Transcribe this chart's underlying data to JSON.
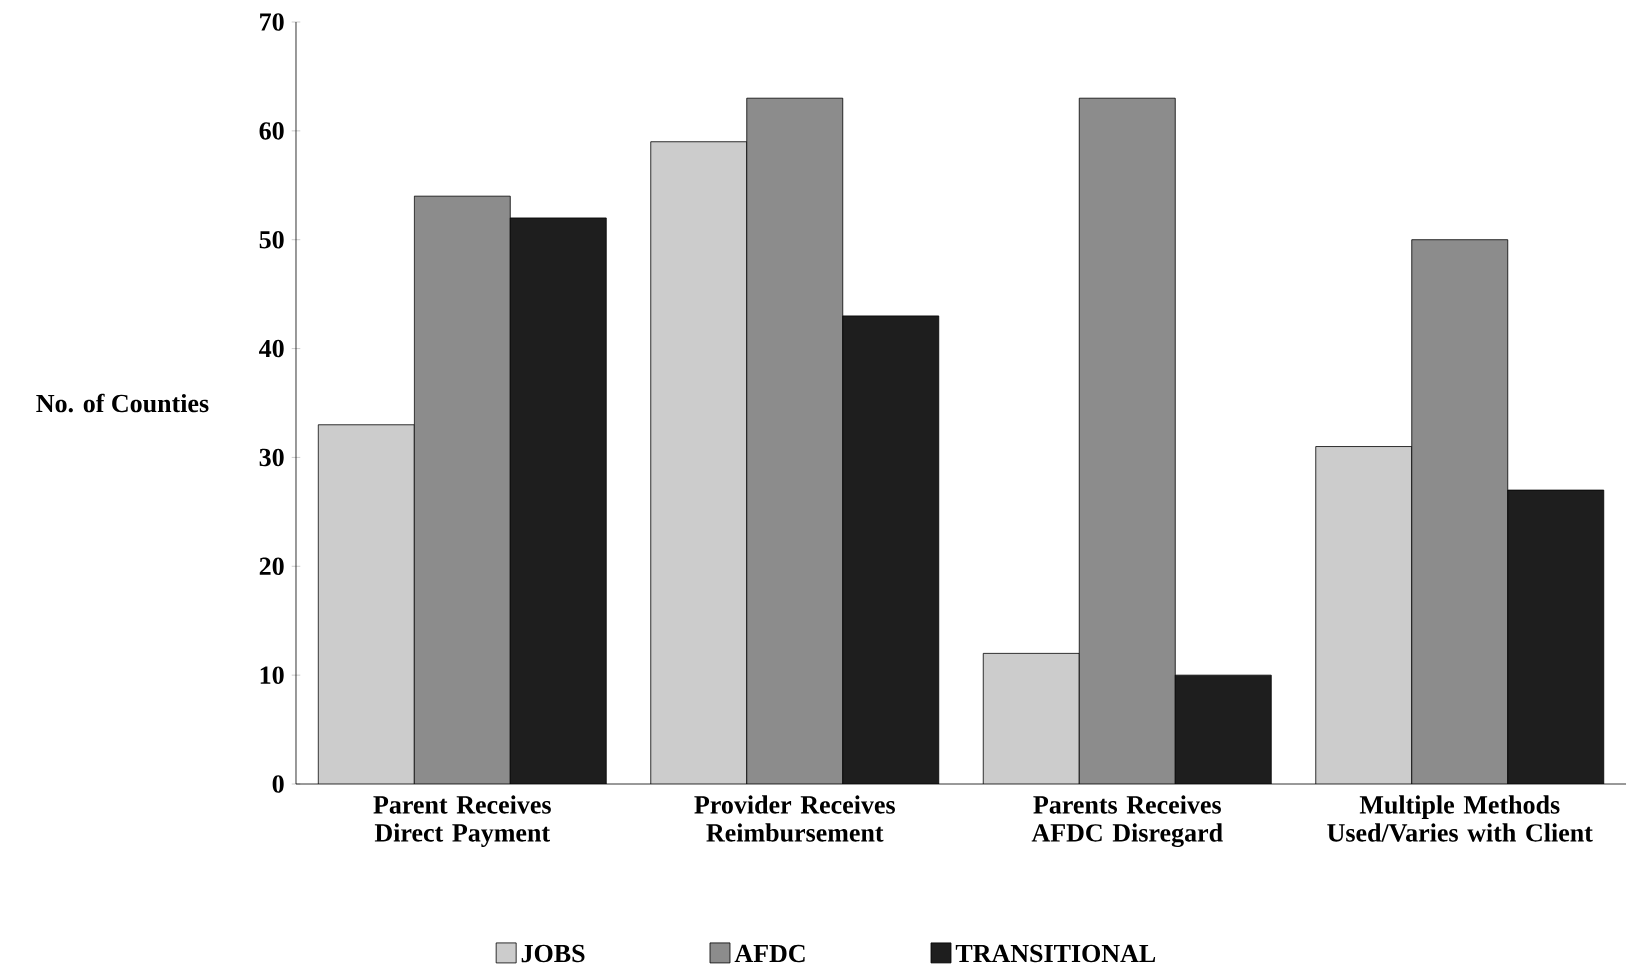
{
  "chart_data": {
    "type": "bar",
    "ylabel": "No. of Counties",
    "categories": [
      "Parent Receives Direct Payment",
      "Provider Receives Reimbursement",
      "Parents Receives AFDC Disregard",
      "Multiple Methods Used/Varies with Client"
    ],
    "series": [
      {
        "name": "JOBS",
        "color": "#cccccc",
        "values": [
          33,
          59,
          12,
          31
        ]
      },
      {
        "name": "AFDC",
        "color": "#8c8c8c",
        "values": [
          54,
          63,
          63,
          50
        ]
      },
      {
        "name": "TRANSITIONAL",
        "color": "#1e1e1e",
        "values": [
          52,
          43,
          10,
          27
        ]
      }
    ],
    "ylim": [
      0,
      70
    ],
    "yticks": [
      0,
      10,
      20,
      30,
      40,
      50,
      60,
      70
    ],
    "grid": false,
    "legend": "bottom"
  }
}
